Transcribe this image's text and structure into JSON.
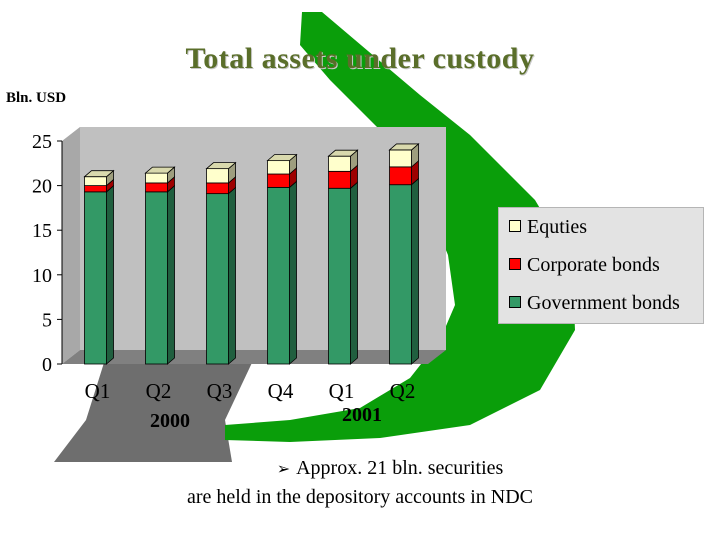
{
  "slide": {
    "title": "Total assets under custody",
    "unit": "Bln. USD",
    "note_line1": "Approx. 21 bln. securities",
    "note_line2": "are held in the depository accounts in NDC",
    "bullet_icon": "arrow-bullet-icon"
  },
  "chart_data": {
    "type": "bar",
    "stacked": true,
    "three_d": true,
    "categories": [
      "Q1",
      "Q2",
      "Q3",
      "Q4",
      "Q1",
      "Q2"
    ],
    "groups": [
      {
        "label": "2000",
        "categories": [
          "Q1",
          "Q2",
          "Q3",
          "Q4"
        ]
      },
      {
        "label": "2001",
        "categories": [
          "Q1",
          "Q2"
        ]
      }
    ],
    "series": [
      {
        "name": "Government bonds",
        "values": [
          19.3,
          19.3,
          19.1,
          19.8,
          19.7,
          20.1
        ],
        "color": "#339966"
      },
      {
        "name": "Corporate bonds",
        "values": [
          0.7,
          1.0,
          1.2,
          1.5,
          1.9,
          2.0
        ],
        "color": "#ff0000"
      },
      {
        "name": "Equties",
        "values": [
          1.0,
          1.1,
          1.6,
          1.5,
          1.7,
          1.9
        ],
        "color": "#ffffcc"
      }
    ],
    "yticks": [
      0,
      5,
      10,
      15,
      20,
      25
    ],
    "ylim": [
      0,
      25
    ],
    "legend_position": "right",
    "grid": false
  }
}
